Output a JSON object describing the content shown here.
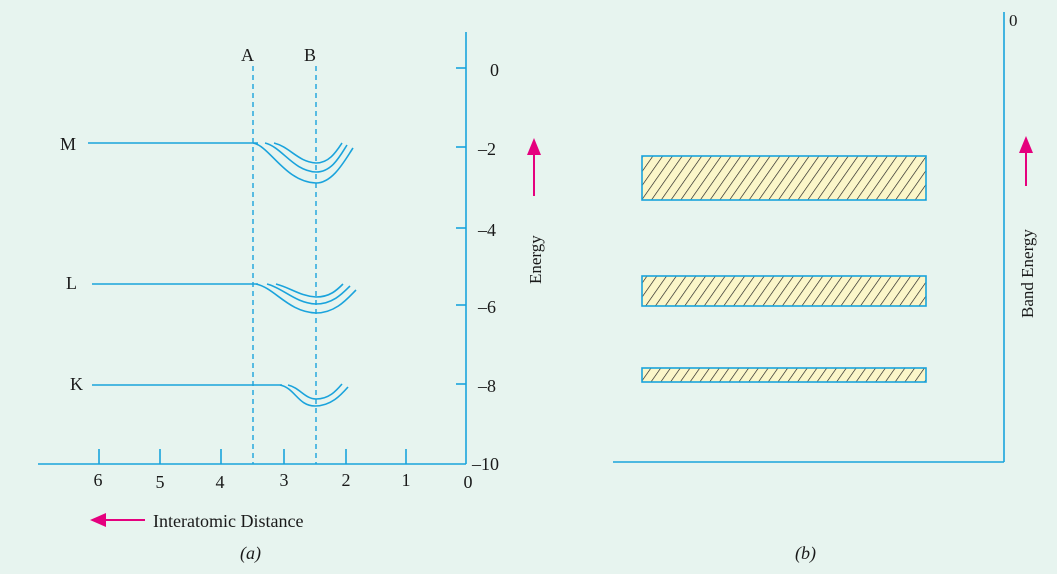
{
  "colors": {
    "background": "#e7f4ef",
    "line": "#1aa3dc",
    "arrow": "#e5007e",
    "band_fill": "#fbf6c9",
    "hatch": "#1a1a1a"
  },
  "panel_a": {
    "caption": "(a)",
    "vertical_markers": [
      "A",
      "B"
    ],
    "levels": [
      "M",
      "L",
      "K"
    ],
    "energy_ticks": [
      "0",
      "–2",
      "–4",
      "–6",
      "–8",
      "–10"
    ],
    "energy_label": "Energy",
    "distance_ticks": [
      "6",
      "5",
      "4",
      "3",
      "2",
      "1",
      "0"
    ],
    "distance_label": "Interatomic Distance"
  },
  "panel_b": {
    "caption": "(b)",
    "axis_top_label": "0",
    "energy_label": "Band Energy",
    "band_count": 3
  }
}
